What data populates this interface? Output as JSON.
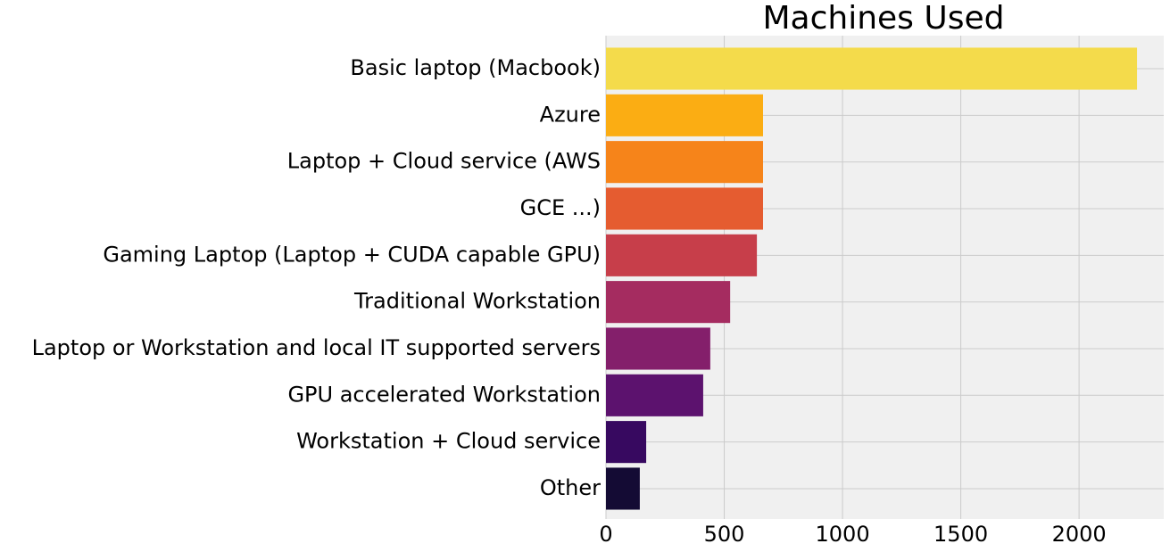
{
  "chart_data": {
    "type": "barh",
    "title": "Machines Used",
    "categories": [
      "Basic laptop (Macbook)",
      "Azure",
      "Laptop + Cloud service (AWS",
      "GCE ...)",
      "Gaming Laptop (Laptop + CUDA capable GPU)",
      "Traditional Workstation",
      "Laptop or Workstation and local IT supported servers",
      "GPU accelerated Workstation",
      "Workstation + Cloud service",
      "Other"
    ],
    "values": [
      2245,
      664,
      664,
      664,
      638,
      525,
      441,
      411,
      170,
      143
    ],
    "colors": [
      "#f4db4b",
      "#fbad13",
      "#f6841a",
      "#e55c30",
      "#c73e4a",
      "#a52c60",
      "#841f6b",
      "#5c126e",
      "#370960",
      "#140b34"
    ],
    "xlim": [
      0,
      2358
    ],
    "xticks": [
      0,
      500,
      1000,
      1500,
      2000
    ],
    "grid": true
  }
}
